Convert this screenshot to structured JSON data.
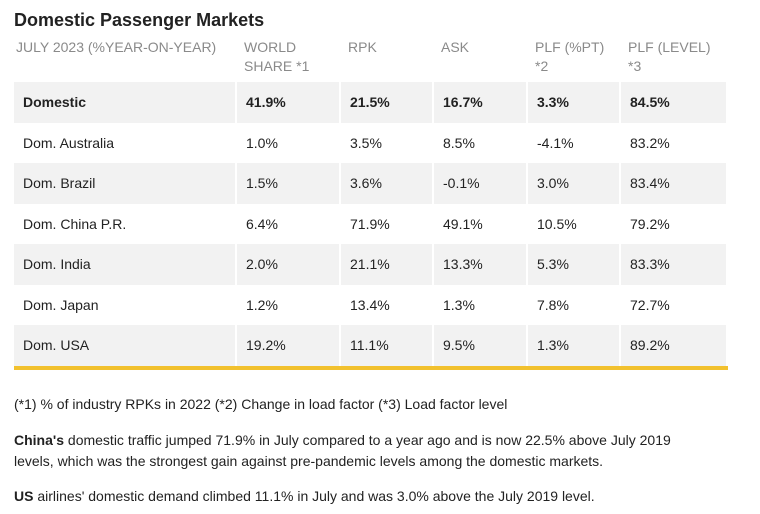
{
  "title": "Domestic Passenger Markets",
  "table": {
    "header": [
      "JULY 2023 (%YEAR-ON-YEAR)",
      "WORLD SHARE *1",
      "RPK",
      "ASK",
      "PLF (%PT) *2",
      "PLF (LEVEL) *3"
    ],
    "rows": [
      [
        "Domestic",
        "41.9%",
        "21.5%",
        "16.7%",
        "3.3%",
        "84.5%"
      ],
      [
        "Dom. Australia",
        "1.0%",
        "3.5%",
        "8.5%",
        "-4.1%",
        "83.2%"
      ],
      [
        "Dom. Brazil",
        "1.5%",
        "3.6%",
        "-0.1%",
        "3.0%",
        "83.4%"
      ],
      [
        "Dom. China P.R.",
        "6.4%",
        "71.9%",
        "49.1%",
        "10.5%",
        "79.2%"
      ],
      [
        "Dom. India",
        "2.0%",
        "21.1%",
        "13.3%",
        "5.3%",
        "83.3%"
      ],
      [
        "Dom. Japan",
        "1.2%",
        "13.4%",
        "1.3%",
        "7.8%",
        "72.7%"
      ],
      [
        "Dom. USA",
        "19.2%",
        "11.1%",
        "9.5%",
        "1.3%",
        "89.2%"
      ]
    ]
  },
  "footnote": "(*1) % of industry RPKs in 2022  (*2) Change in load factor   (*3) Load factor level",
  "paragraphs": [
    {
      "bold": "China's",
      "text": " domestic traffic jumped 71.9% in July compared to a year ago and is now 22.5% above July 2019 levels, which was the strongest gain against pre-pandemic levels among the domestic markets."
    },
    {
      "bold": "US",
      "text": " airlines' domestic demand climbed 11.1% in July and was 3.0% above the July 2019 level."
    }
  ]
}
